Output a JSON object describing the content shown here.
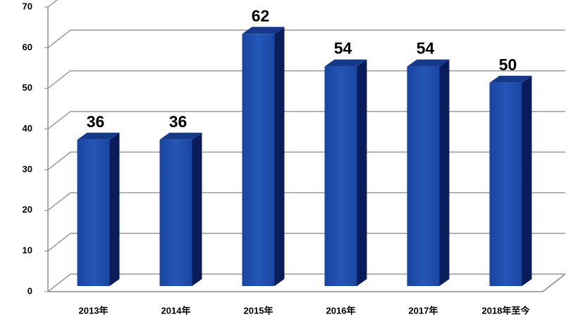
{
  "chart_data": {
    "type": "bar3d",
    "categories": [
      "2013年",
      "2014年",
      "2015年",
      "2016年",
      "2017年",
      "2018年至今"
    ],
    "values": [
      36,
      36,
      62,
      54,
      54,
      50
    ],
    "color": "#1f4fae",
    "ylim": [
      0,
      70
    ],
    "yticks": [
      0,
      10,
      20,
      30,
      40,
      50,
      60,
      70
    ],
    "grid": true
  }
}
